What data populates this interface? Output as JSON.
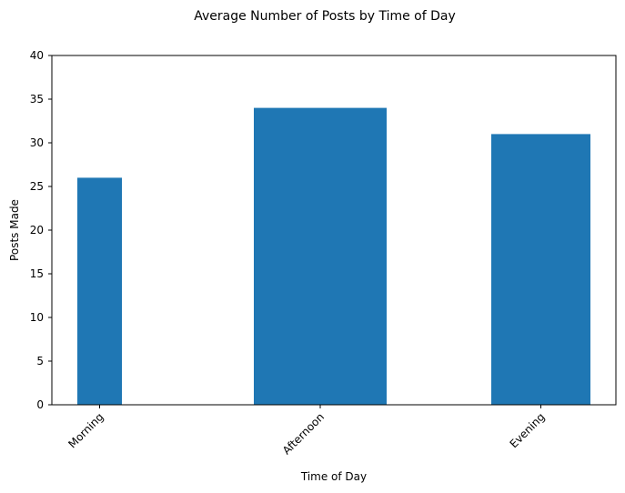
{
  "chart_data": {
    "type": "bar",
    "title": "Average Number of Posts by Time of Day",
    "xlabel": "Time of Day",
    "ylabel": "Posts Made",
    "categories": [
      "Morning",
      "Afternoon",
      "Evening"
    ],
    "values": [
      26,
      34,
      31
    ],
    "ylim": [
      0,
      40
    ],
    "yticks": [
      0,
      5,
      10,
      15,
      20,
      25,
      30,
      35,
      40
    ],
    "ytick_labels": [
      "0",
      "5",
      "10",
      "15",
      "20",
      "25",
      "30",
      "35",
      "40"
    ],
    "xtick_rotation_deg": 45,
    "grid": false,
    "legend": "none",
    "bar_color": "#1f77b4"
  }
}
